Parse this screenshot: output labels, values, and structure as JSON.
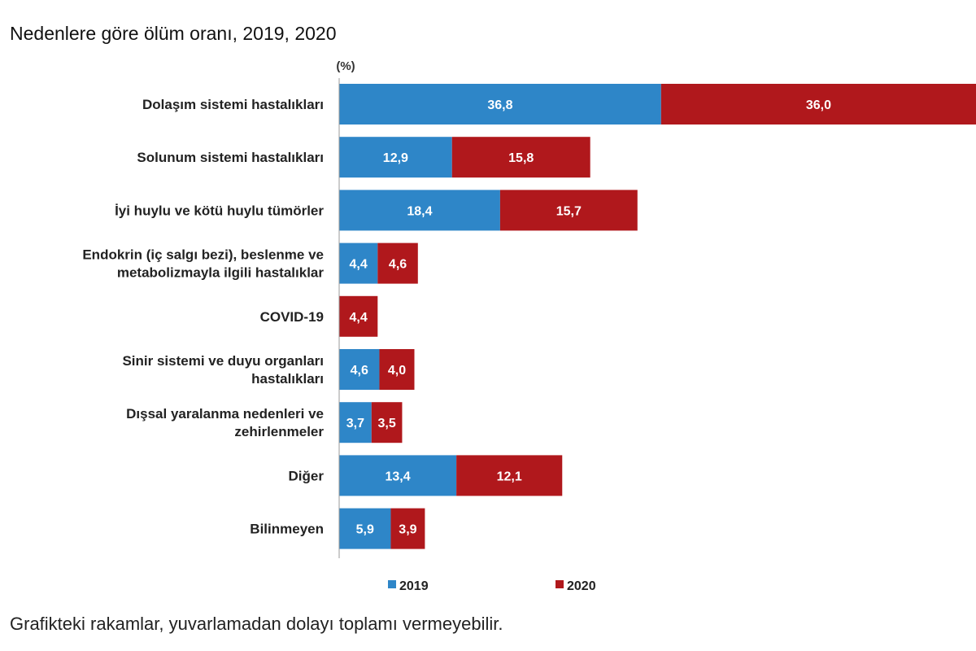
{
  "title": "Nedenlere göre ölüm oranı, 2019, 2020",
  "footnote": "Grafikteki rakamlar, yuvarlamadan dolayı toplamı vermeyebilir.",
  "colors": {
    "y2019": "#2e86c8",
    "y2020": "#b0181c",
    "axis": "#999999"
  },
  "chart_data": {
    "type": "bar",
    "orientation": "horizontal",
    "stacked": true,
    "title": "Nedenlere göre ölüm oranı, 2019, 2020",
    "unit": "(%)",
    "categories": [
      [
        "Dolaşım sistemi hastalıkları"
      ],
      [
        "Solunum sistemi hastalıkları"
      ],
      [
        "İyi huylu ve kötü huylu tümörler"
      ],
      [
        "Endokrin (iç salgı bezi), beslenme ve",
        "metabolizmayla ilgili hastalıklar"
      ],
      [
        "COVID-19"
      ],
      [
        "Sinir sistemi ve duyu organları",
        "hastalıkları"
      ],
      [
        "Dışsal yaralanma nedenleri ve",
        "zehirlenmeler"
      ],
      [
        "Diğer"
      ],
      [
        "Bilinmeyen"
      ]
    ],
    "series": [
      {
        "name": "2019",
        "values": [
          36.8,
          12.9,
          18.4,
          4.4,
          0,
          4.6,
          3.7,
          13.4,
          5.9
        ],
        "labels": [
          "36,8",
          "12,9",
          "18,4",
          "4,4",
          "",
          "4,6",
          "3,7",
          "13,4",
          "5,9"
        ]
      },
      {
        "name": "2020",
        "values": [
          36.0,
          15.8,
          15.7,
          4.6,
          4.4,
          4.0,
          3.5,
          12.1,
          3.9
        ],
        "labels": [
          "36,0",
          "15,8",
          "15,7",
          "4,6",
          "4,4",
          "4,0",
          "3,5",
          "12,1",
          "3,9"
        ]
      }
    ],
    "xlim": [
      0,
      72.8
    ],
    "legend_position": "bottom"
  }
}
